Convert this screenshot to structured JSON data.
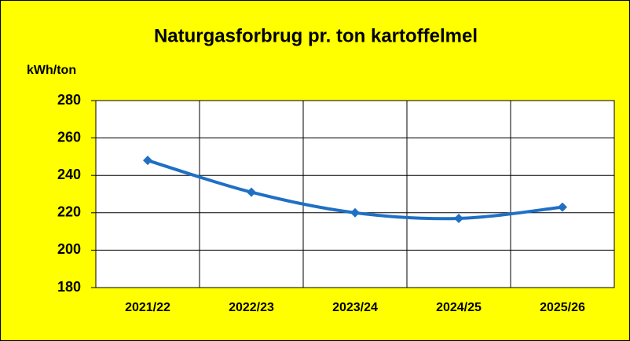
{
  "chart_data": {
    "type": "line",
    "title": "Naturgasforbrug pr. ton kartoffelmel",
    "y_label": "kWh/ton",
    "categories": [
      "2021/22",
      "2022/23",
      "2023/24",
      "2024/25",
      "2025/26"
    ],
    "values": [
      248,
      231,
      220,
      217,
      223
    ],
    "color": "#1f6fc5",
    "ylim": [
      180,
      280
    ],
    "yticks": [
      180,
      200,
      220,
      240,
      260,
      280
    ],
    "grid": true,
    "background": "#ffff00"
  }
}
